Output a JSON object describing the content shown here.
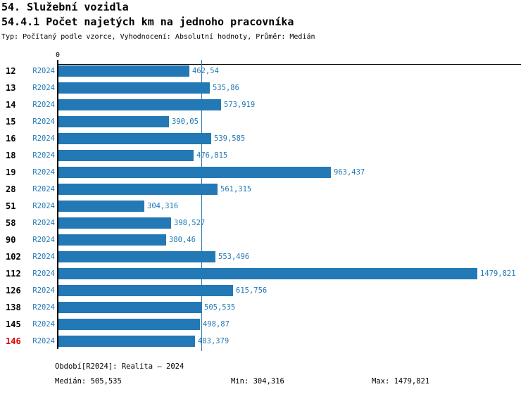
{
  "header": {
    "title": "54. Služební vozidla",
    "indicator_title": "54.4.1 Počet najetých km na jednoho pracovníka",
    "meta": "Typ: Počítaný podle vzorce, Vyhodnocení: Absolutní hodnoty, Průměr: Medián"
  },
  "colors": {
    "bar_blue": "#2379b5",
    "text_blue": "#2379b5",
    "highlight_red": "#dd0000",
    "axis_black": "#000000"
  },
  "chart_data": {
    "type": "bar",
    "orientation": "horizontal",
    "title": "54.4.1 Počet najetých km na jednoho pracovníka",
    "series_label": "R2024",
    "axis_zero_label": "0",
    "xlim": [
      0,
      1630
    ],
    "grid": false,
    "median_reference_line": 505.535,
    "categories": [
      "12",
      "13",
      "14",
      "15",
      "16",
      "18",
      "19",
      "28",
      "51",
      "58",
      "90",
      "102",
      "112",
      "126",
      "138",
      "145",
      "146"
    ],
    "values": [
      462.54,
      535.86,
      573.919,
      390.05,
      539.585,
      476.815,
      963.437,
      561.315,
      304.316,
      398.527,
      380.46,
      553.496,
      1479.821,
      615.756,
      505.535,
      498.87,
      483.379
    ],
    "value_labels": [
      "462,54",
      "535,86",
      "573,919",
      "390,05",
      "539,585",
      "476,815",
      "963,437",
      "561,315",
      "304,316",
      "398,527",
      "380,46",
      "553,496",
      "1479,821",
      "615,756",
      "505,535",
      "498,87",
      "483,379"
    ],
    "highlighted_categories": [
      "146"
    ]
  },
  "footer": {
    "period": "Období[R2024]: Realita – 2024",
    "median": "Medián: 505,535",
    "min": "Min: 304,316",
    "max": "Max: 1479,821"
  }
}
